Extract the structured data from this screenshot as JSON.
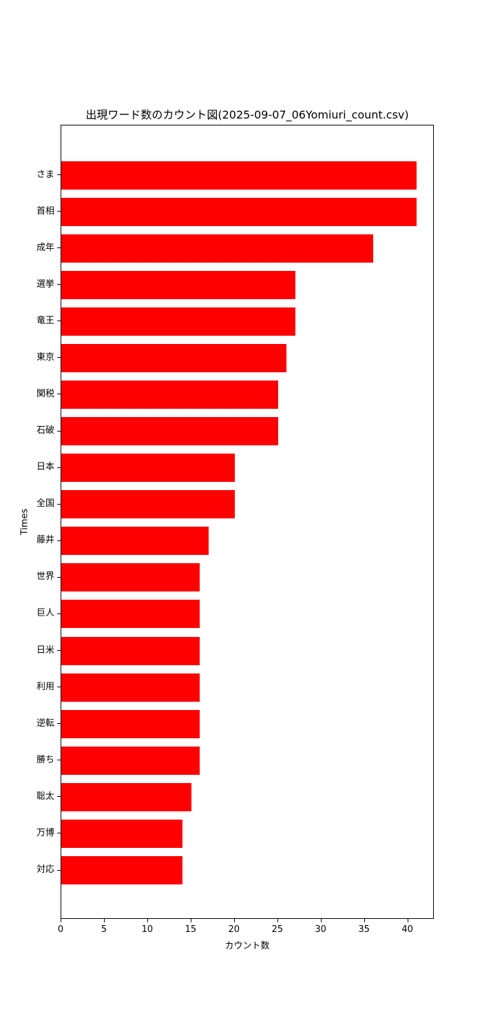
{
  "chart_data": {
    "type": "bar",
    "orientation": "horizontal",
    "title": "出現ワード数のカウント図(2025-09-07_06Yomiuri_count.csv)",
    "xlabel": "カウント数",
    "ylabel": "Times",
    "categories": [
      "さま",
      "首相",
      "成年",
      "選挙",
      "竜王",
      "東京",
      "関税",
      "石破",
      "日本",
      "全国",
      "藤井",
      "世界",
      "巨人",
      "日米",
      "利用",
      "逆転",
      "勝ち",
      "聡太",
      "万博",
      "対応"
    ],
    "values": [
      41,
      41,
      36,
      27,
      27,
      26,
      25,
      25,
      20,
      20,
      17,
      16,
      16,
      16,
      16,
      16,
      16,
      15,
      14,
      14
    ],
    "xlim": [
      0,
      43.05
    ],
    "xticks": [
      0,
      5,
      10,
      15,
      20,
      25,
      30,
      35,
      40
    ],
    "bar_color": "#ff0000",
    "axis_color": "#000000",
    "background_color": "#ffffff",
    "grid": false,
    "legend": "none"
  }
}
